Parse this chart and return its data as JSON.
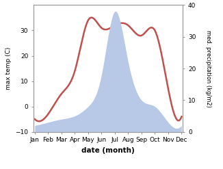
{
  "months": [
    "Jan",
    "Feb",
    "Mar",
    "Apr",
    "May",
    "Jun",
    "Jul",
    "Aug",
    "Sep",
    "Oct",
    "Nov",
    "Dec"
  ],
  "temp": [
    -5,
    -3,
    5,
    14,
    34,
    31,
    32,
    32,
    28,
    30,
    7,
    -4
  ],
  "precip": [
    2,
    3,
    4,
    5,
    8,
    18,
    38,
    22,
    10,
    8,
    3,
    2
  ],
  "temp_color": "#c0504d",
  "precip_fill_color": "#b8c9e8",
  "ylabel_left": "max temp (C)",
  "ylabel_right": "med. precipitation (kg/m2)",
  "xlabel": "date (month)",
  "ylim_left": [
    -10,
    40
  ],
  "ylim_right": [
    0,
    40
  ],
  "background_color": "#ffffff",
  "spine_color": "#999999"
}
